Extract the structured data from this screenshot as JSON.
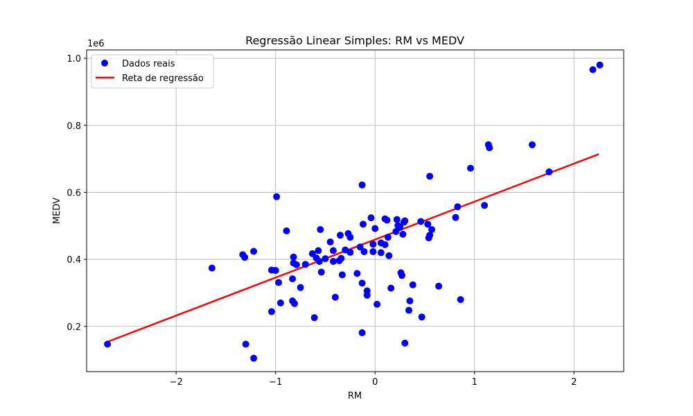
{
  "chart_data": {
    "type": "scatter",
    "title": "Regressão Linear Simples: RM vs MEDV",
    "xlabel": "RM",
    "ylabel": "MEDV",
    "y_offset_label": "1e6",
    "xlim": [
      -2.9,
      2.5
    ],
    "ylim": [
      0.065,
      1.025
    ],
    "y_scale_factor": 1000000,
    "x_ticks": [
      -2,
      -1,
      0,
      1,
      2
    ],
    "x_tick_labels": [
      "−2",
      "−1",
      "0",
      "1",
      "2"
    ],
    "y_ticks": [
      0.2,
      0.4,
      0.6,
      0.8,
      1.0
    ],
    "y_tick_labels": [
      "0.2",
      "0.4",
      "0.6",
      "0.8",
      "1.0"
    ],
    "grid": true,
    "legend_position": "top-left",
    "legend": [
      {
        "label": "Dados reais",
        "kind": "marker",
        "color": "#0000ff"
      },
      {
        "label": "Reta de regressão",
        "kind": "line",
        "color": "#ff0000"
      }
    ],
    "series": [
      {
        "name": "Dados reais",
        "kind": "scatter",
        "color": "#0000ff",
        "points": [
          [
            -2.69,
            0.147
          ],
          [
            -1.64,
            0.374
          ],
          [
            -1.33,
            0.414
          ],
          [
            -1.31,
            0.406
          ],
          [
            -1.3,
            0.147
          ],
          [
            -1.22,
            0.424
          ],
          [
            -1.22,
            0.105
          ],
          [
            -1.04,
            0.368
          ],
          [
            -1.04,
            0.244
          ],
          [
            -1.0,
            0.367
          ],
          [
            -0.99,
            0.587
          ],
          [
            -0.97,
            0.331
          ],
          [
            -0.95,
            0.27
          ],
          [
            -0.89,
            0.485
          ],
          [
            -0.83,
            0.276
          ],
          [
            -0.83,
            0.342
          ],
          [
            -0.82,
            0.407
          ],
          [
            -0.82,
            0.389
          ],
          [
            -0.81,
            0.268
          ],
          [
            -0.79,
            0.384
          ],
          [
            -0.75,
            0.316
          ],
          [
            -0.7,
            0.385
          ],
          [
            -0.63,
            0.417
          ],
          [
            -0.61,
            0.226
          ],
          [
            -0.59,
            0.404
          ],
          [
            -0.57,
            0.426
          ],
          [
            -0.56,
            0.394
          ],
          [
            -0.55,
            0.489
          ],
          [
            -0.54,
            0.362
          ],
          [
            -0.5,
            0.402
          ],
          [
            -0.45,
            0.452
          ],
          [
            -0.42,
            0.426
          ],
          [
            -0.42,
            0.394
          ],
          [
            -0.4,
            0.287
          ],
          [
            -0.36,
            0.396
          ],
          [
            -0.35,
            0.472
          ],
          [
            -0.34,
            0.403
          ],
          [
            -0.33,
            0.354
          ],
          [
            -0.3,
            0.428
          ],
          [
            -0.27,
            0.477
          ],
          [
            -0.25,
            0.466
          ],
          [
            -0.25,
            0.421
          ],
          [
            -0.18,
            0.358
          ],
          [
            -0.15,
            0.437
          ],
          [
            -0.13,
            0.622
          ],
          [
            -0.13,
            0.329
          ],
          [
            -0.13,
            0.181
          ],
          [
            -0.12,
            0.505
          ],
          [
            -0.11,
            0.423
          ],
          [
            -0.08,
            0.306
          ],
          [
            -0.08,
            0.293
          ],
          [
            -0.04,
            0.524
          ],
          [
            -0.02,
            0.445
          ],
          [
            -0.02,
            0.423
          ],
          [
            0.0,
            0.492
          ],
          [
            0.02,
            0.266
          ],
          [
            0.06,
            0.449
          ],
          [
            0.06,
            0.42
          ],
          [
            0.1,
            0.521
          ],
          [
            0.1,
            0.444
          ],
          [
            0.12,
            0.517
          ],
          [
            0.13,
            0.466
          ],
          [
            0.14,
            0.411
          ],
          [
            0.16,
            0.314
          ],
          [
            0.21,
            0.483
          ],
          [
            0.22,
            0.519
          ],
          [
            0.23,
            0.501
          ],
          [
            0.25,
            0.496
          ],
          [
            0.26,
            0.36
          ],
          [
            0.27,
            0.352
          ],
          [
            0.28,
            0.475
          ],
          [
            0.29,
            0.511
          ],
          [
            0.3,
            0.515
          ],
          [
            0.3,
            0.15
          ],
          [
            0.34,
            0.248
          ],
          [
            0.35,
            0.276
          ],
          [
            0.38,
            0.324
          ],
          [
            0.46,
            0.513
          ],
          [
            0.47,
            0.228
          ],
          [
            0.53,
            0.505
          ],
          [
            0.54,
            0.464
          ],
          [
            0.55,
            0.648
          ],
          [
            0.55,
            0.472
          ],
          [
            0.57,
            0.489
          ],
          [
            0.64,
            0.32
          ],
          [
            0.81,
            0.525
          ],
          [
            0.83,
            0.557
          ],
          [
            0.86,
            0.28
          ],
          [
            0.96,
            0.672
          ],
          [
            1.1,
            0.561
          ],
          [
            1.14,
            0.742
          ],
          [
            1.15,
            0.733
          ],
          [
            1.58,
            0.742
          ],
          [
            1.75,
            0.661
          ],
          [
            2.19,
            0.966
          ],
          [
            2.26,
            0.98
          ]
        ]
      },
      {
        "name": "Reta de regressão",
        "kind": "line",
        "color": "#ff0000",
        "points": [
          [
            -2.69,
            0.154
          ],
          [
            2.25,
            0.714
          ]
        ]
      }
    ]
  }
}
